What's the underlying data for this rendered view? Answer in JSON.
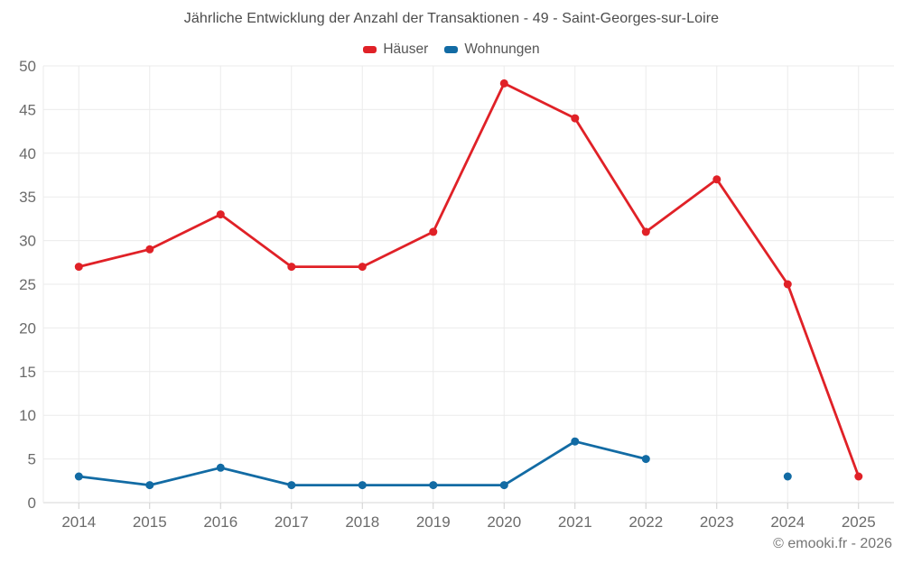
{
  "page": {
    "background": "#ffffff"
  },
  "chart_data": {
    "type": "line",
    "title": "Jährliche Entwicklung der Anzahl der Transaktionen - 49 - Saint-Georges-sur-Loire",
    "categories": [
      "2014",
      "2015",
      "2016",
      "2017",
      "2018",
      "2019",
      "2020",
      "2021",
      "2022",
      "2023",
      "2024",
      "2025"
    ],
    "series": [
      {
        "name": "Häuser",
        "color": "#e02127",
        "values": [
          27,
          29,
          33,
          27,
          27,
          31,
          48,
          44,
          31,
          37,
          25,
          3
        ]
      },
      {
        "name": "Wohnungen",
        "color": "#126ba4",
        "values": [
          3,
          2,
          4,
          2,
          2,
          2,
          2,
          7,
          5,
          null,
          3,
          null
        ]
      }
    ],
    "xlabel": "",
    "ylabel": "",
    "ylim": [
      0,
      50
    ],
    "ytick_step": 5,
    "yticks": [
      0,
      5,
      10,
      15,
      20,
      25,
      30,
      35,
      40,
      45,
      50
    ],
    "grid": true,
    "legend_position": "top",
    "copyright": "© emooki.fr - 2026",
    "colors": {
      "grid_line": "#ebebeb",
      "axis_line": "#d6d6d6",
      "tick_mark": "#cfcfcf",
      "axis_label": "#6b6b6b",
      "title_text": "#4c4c4c",
      "legend_text": "#555555",
      "copyright_text": "#757575"
    }
  }
}
